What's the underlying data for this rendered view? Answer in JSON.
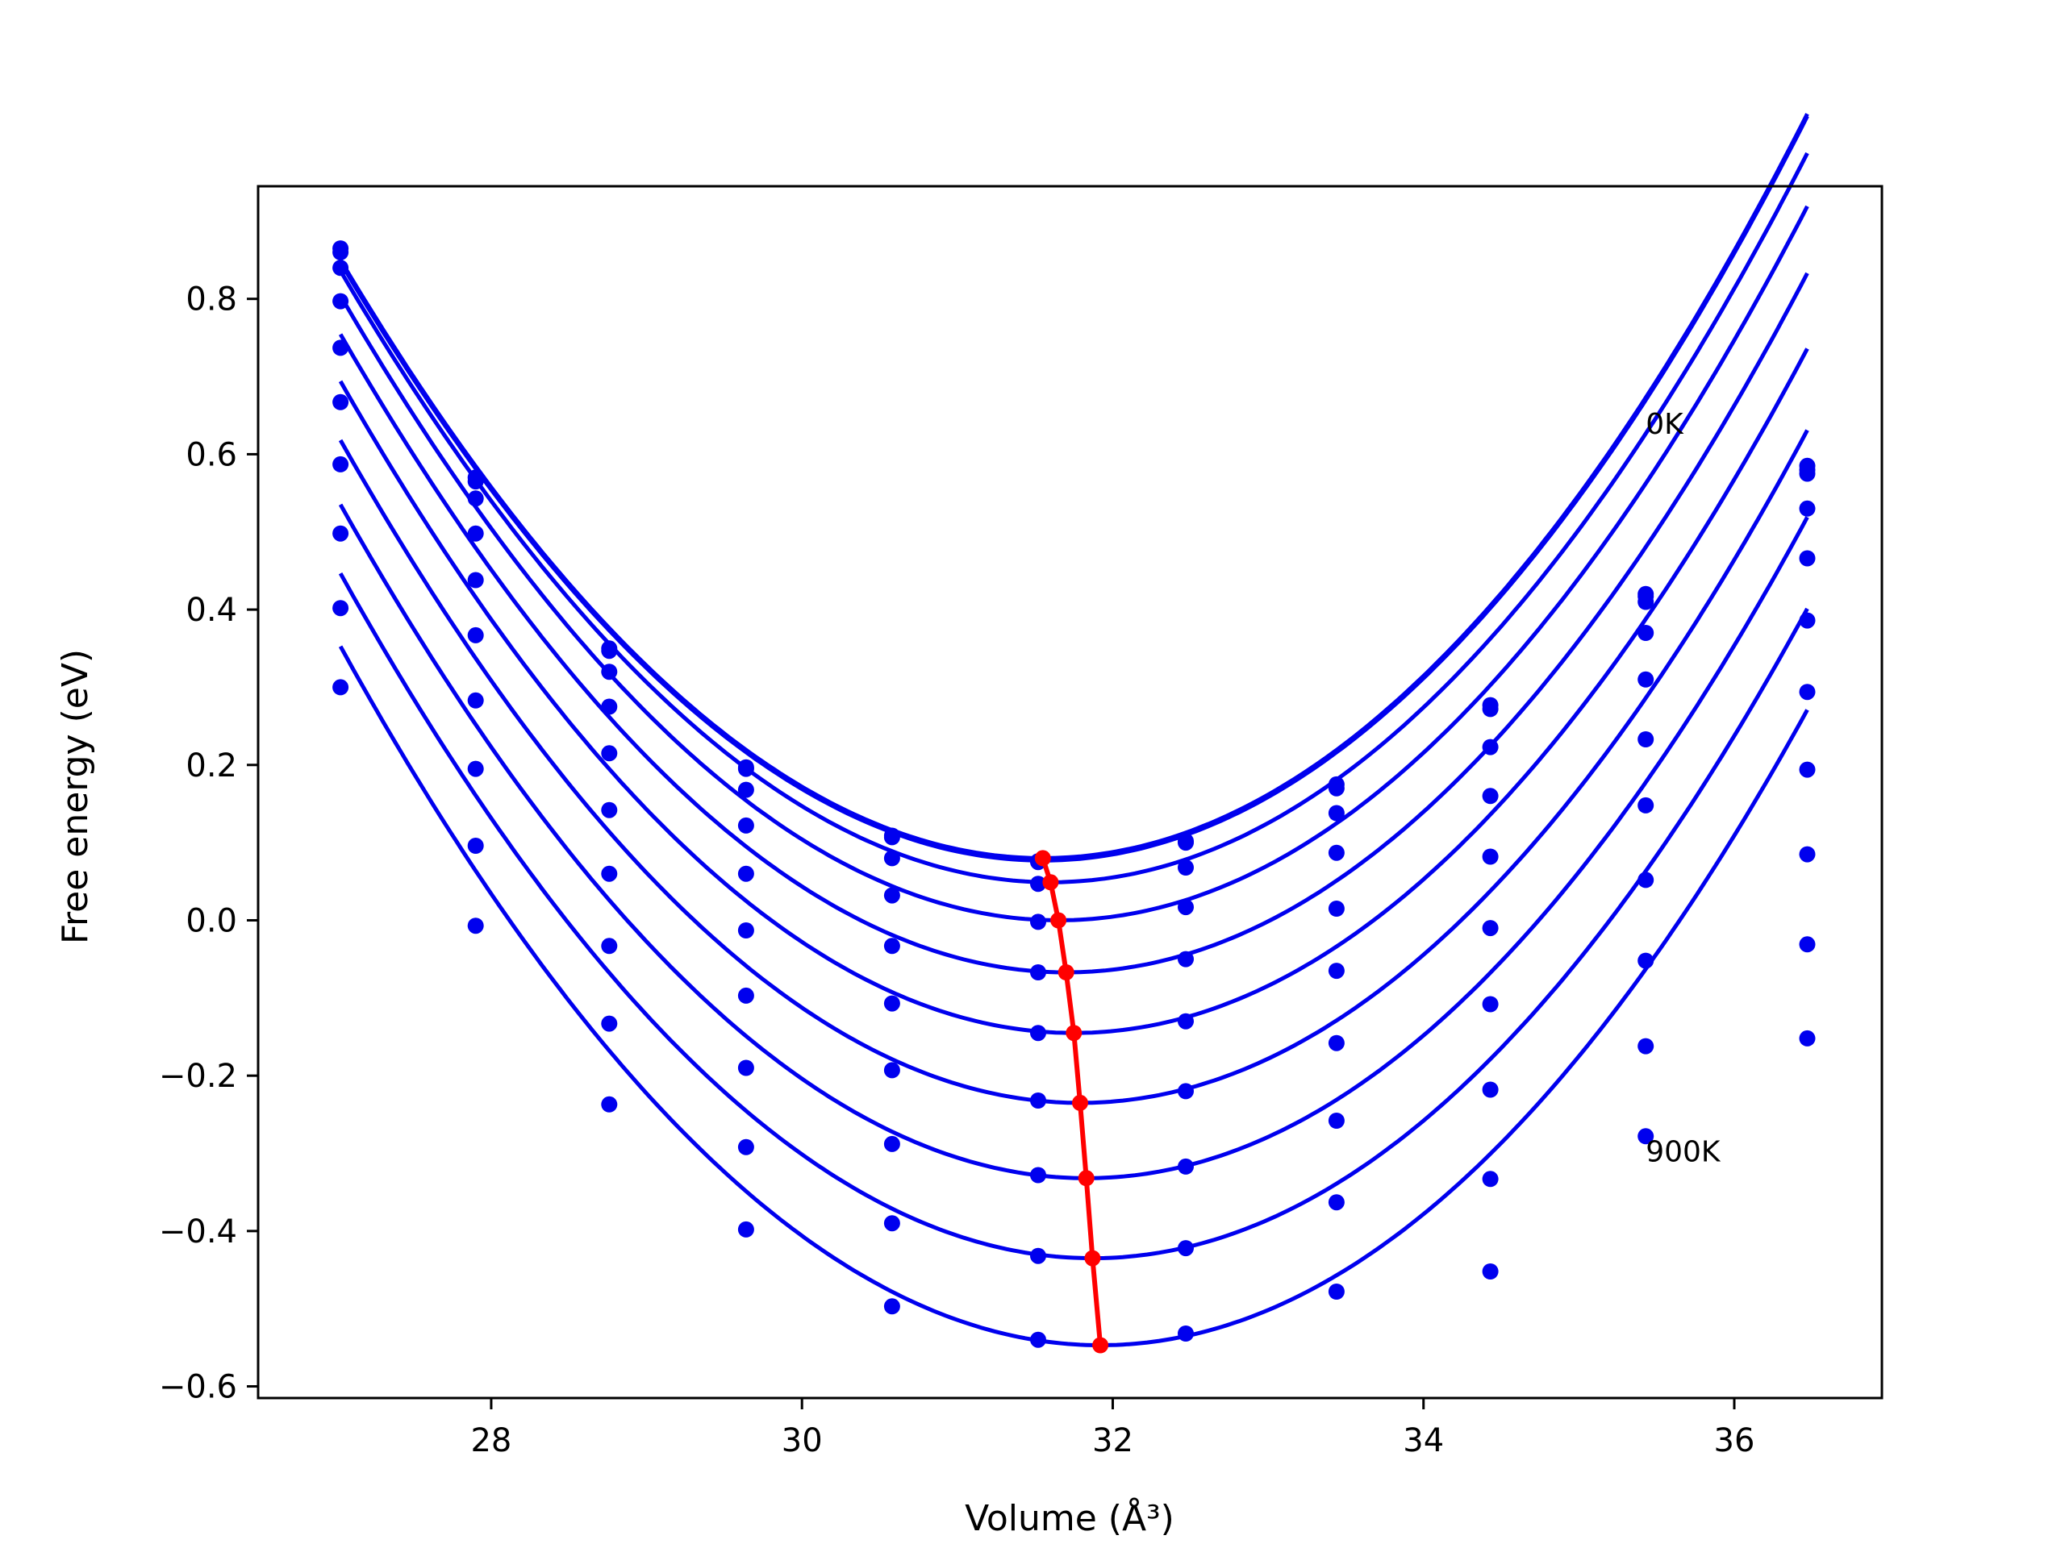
{
  "chart_data": {
    "type": "line",
    "xlabel": "Volume (Å³)",
    "ylabel": "Free energy (eV)",
    "xlim": [
      26.5,
      36.95
    ],
    "ylim": [
      -0.615,
      0.945
    ],
    "xticks": [
      28,
      30,
      32,
      34,
      36
    ],
    "yticks": [
      -0.6,
      -0.4,
      -0.2,
      0.0,
      0.2,
      0.4,
      0.6,
      0.8
    ],
    "x": [
      27.03,
      27.9,
      28.76,
      29.64,
      30.58,
      31.52,
      32.47,
      33.44,
      34.43,
      35.43,
      36.47
    ],
    "series": [
      {
        "values": [
          0.865,
          0.57,
          0.35,
          0.197,
          0.109,
          0.076,
          0.102,
          0.175,
          0.277,
          0.42,
          0.585
        ]
      },
      {
        "values": [
          0.86,
          0.565,
          0.347,
          0.195,
          0.107,
          0.075,
          0.1,
          0.17,
          0.272,
          0.417,
          0.58
        ]
      },
      {
        "values": [
          0.84,
          0.543,
          0.32,
          0.168,
          0.08,
          0.047,
          0.068,
          0.138,
          0.223,
          0.41,
          0.575
        ]
      },
      {
        "values": [
          0.797,
          0.498,
          0.275,
          0.122,
          0.032,
          -0.002,
          0.017,
          0.087,
          0.16,
          0.37,
          0.53
        ]
      },
      {
        "values": [
          0.737,
          0.438,
          0.215,
          0.06,
          -0.033,
          -0.067,
          -0.05,
          0.015,
          0.082,
          0.31,
          0.466
        ]
      },
      {
        "values": [
          0.667,
          0.367,
          0.142,
          -0.013,
          -0.107,
          -0.145,
          -0.13,
          -0.065,
          -0.01,
          0.233,
          0.386
        ]
      },
      {
        "values": [
          0.587,
          0.283,
          0.06,
          -0.097,
          -0.193,
          -0.232,
          -0.22,
          -0.158,
          -0.108,
          0.148,
          0.294
        ]
      },
      {
        "values": [
          0.498,
          0.195,
          -0.033,
          -0.19,
          -0.288,
          -0.328,
          -0.317,
          -0.258,
          -0.218,
          0.052,
          0.194
        ]
      },
      {
        "values": [
          0.402,
          0.096,
          -0.133,
          -0.292,
          -0.39,
          -0.432,
          -0.422,
          -0.363,
          -0.333,
          -0.052,
          0.085
        ]
      },
      {
        "values": [
          0.3,
          -0.007,
          -0.237,
          -0.398,
          -0.497,
          -0.54,
          -0.532,
          -0.478,
          -0.452,
          -0.162,
          -0.031
        ]
      },
      {
        "values": [
          null,
          null,
          null,
          null,
          null,
          null,
          null,
          null,
          null,
          -0.278,
          -0.152
        ]
      }
    ],
    "fits": [
      {
        "v0": 31.55,
        "e0": 0.08,
        "a": 0.0386,
        "b": 0.0002
      },
      {
        "v0": 31.55,
        "e0": 0.077,
        "a": 0.0386,
        "b": 0.0002
      },
      {
        "v0": 31.6,
        "e0": 0.049,
        "a": 0.0386,
        "b": 0.0002
      },
      {
        "v0": 31.65,
        "e0": 0.0,
        "a": 0.0386,
        "b": 0.0002
      },
      {
        "v0": 31.7,
        "e0": -0.067,
        "a": 0.0386,
        "b": 0.0002
      },
      {
        "v0": 31.75,
        "e0": -0.145,
        "a": 0.0386,
        "b": 0.0002
      },
      {
        "v0": 31.79,
        "e0": -0.235,
        "a": 0.0386,
        "b": 0.0002
      },
      {
        "v0": 31.83,
        "e0": -0.332,
        "a": 0.0386,
        "b": 0.0002
      },
      {
        "v0": 31.87,
        "e0": -0.435,
        "a": 0.0386,
        "b": 0.0002
      },
      {
        "v0": 31.92,
        "e0": -0.547,
        "a": 0.0386,
        "b": 0.0002
      }
    ],
    "minima": {
      "x": [
        31.55,
        31.6,
        31.65,
        31.7,
        31.75,
        31.79,
        31.83,
        31.87,
        31.92
      ],
      "y": [
        0.08,
        0.049,
        0.0,
        -0.067,
        -0.145,
        -0.235,
        -0.332,
        -0.435,
        -0.547
      ]
    },
    "annotations": [
      {
        "text": "0K",
        "x": 35.43,
        "y": 0.64
      },
      {
        "text": "900K",
        "x": 35.43,
        "y": -0.297
      }
    ],
    "colors": {
      "curves": "#0000ee",
      "minima": "#ff0000"
    },
    "grid": false,
    "legend": "none"
  }
}
